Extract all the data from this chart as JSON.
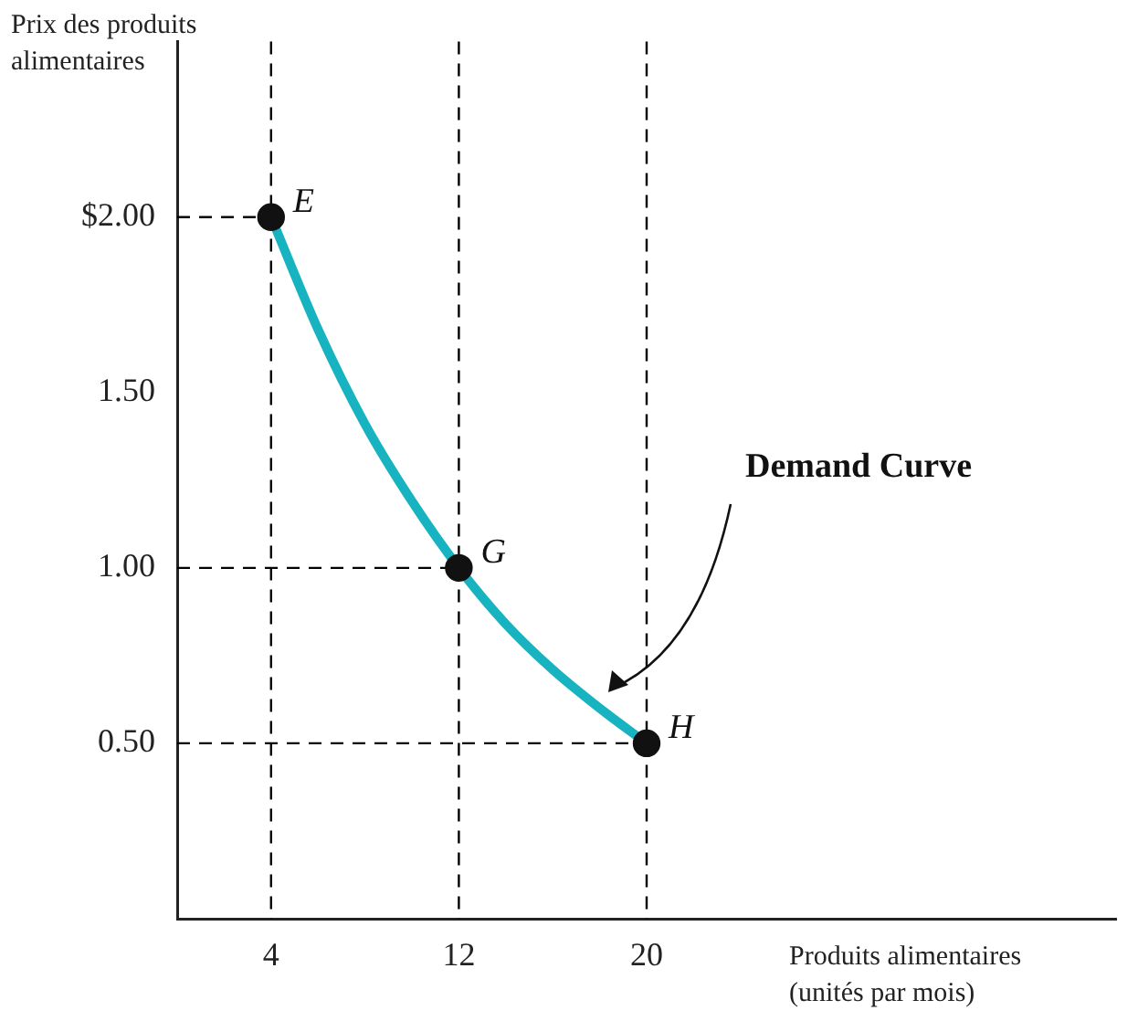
{
  "chart_data": {
    "type": "line",
    "xlabel": "Produits alimentaires (unités par mois)",
    "ylabel": "Prix des produits alimentaires",
    "xlim": [
      0,
      40
    ],
    "ylim": [
      0,
      2.5
    ],
    "xticks": [
      4,
      12,
      20
    ],
    "yticks": [
      {
        "value": 0.5,
        "label": "0.50"
      },
      {
        "value": 1,
        "label": "1.00"
      },
      {
        "value": 1.5,
        "label": "1.50"
      },
      {
        "value": 2,
        "label": "$2.00"
      }
    ],
    "grid": false,
    "legend": false,
    "series": [
      {
        "color": "#17b3c0",
        "marker": "none",
        "line_style": "solid",
        "x": [
          4,
          6,
          8,
          10,
          12,
          14,
          16,
          18,
          20
        ],
        "values": [
          2,
          1.68,
          1.41,
          1.19,
          1,
          0.84,
          0.71,
          0.6,
          0.5
        ]
      },
      {
        "type": "line",
        "color": "#000000",
        "marker": "none",
        "line_style": "dashed",
        "x": [
          0,
          4
        ],
        "values": [
          2,
          2
        ]
      },
      {
        "type": "line",
        "color": "#000000",
        "marker": "none",
        "line_style": "dashed",
        "x": [
          0,
          12
        ],
        "values": [
          1,
          1
        ]
      },
      {
        "type": "line",
        "color": "#000000",
        "marker": "none",
        "line_style": "dashed",
        "x": [
          0,
          20
        ],
        "values": [
          0.5,
          0.5
        ]
      },
      {
        "type": "scatter",
        "color": "#111111",
        "marker": "circle",
        "x": [
          4,
          12,
          20
        ],
        "values": [
          2,
          1,
          0.5
        ]
      }
    ],
    "ref_lines": [
      {
        "axis": "x",
        "value": 4,
        "color": "#000000",
        "line_style": "dashed"
      },
      {
        "axis": "x",
        "value": 12,
        "color": "#000000",
        "line_style": "dashed"
      },
      {
        "axis": "x",
        "value": 20,
        "color": "#000000",
        "line_style": "dashed"
      }
    ],
    "annotations": [
      {
        "text": "E",
        "x": 4,
        "y": 2
      },
      {
        "text": "G",
        "x": 12,
        "y": 1
      },
      {
        "text": "H",
        "x": 20,
        "y": 0.5
      },
      "Demand Curve"
    ]
  }
}
